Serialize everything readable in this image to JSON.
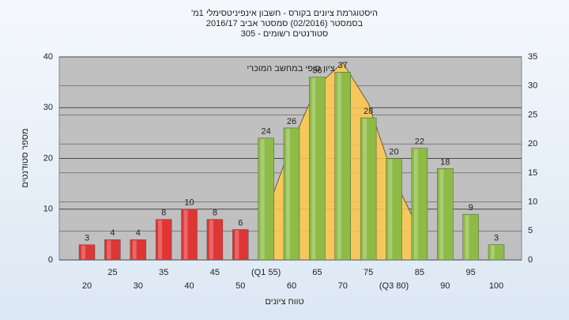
{
  "chart_data": {
    "type": "bar",
    "title": "היסטוגרמת ציונים בקורס - חשבון אינפיניטסימלי 1מ'",
    "subtitle": "בסמסטר  (02/2016)  סמסטר אביב 2016/17",
    "subtitle2": "סטודנטים רשומים - 305",
    "x_label": "טווח ציונים",
    "y_label": "מספר סטודנטים",
    "annotation": "ציון סופי במחשב המוכרי",
    "categories": [
      "20",
      "25",
      "30",
      "35",
      "40",
      "45",
      "50",
      "(Q1 55)",
      "60",
      "65",
      "70",
      "75",
      "(Q3 80)",
      "85",
      "90",
      "95",
      "100"
    ],
    "values": [
      3,
      4,
      4,
      8,
      10,
      8,
      6,
      24,
      26,
      36,
      37,
      28,
      20,
      22,
      18,
      9,
      3
    ],
    "colors": [
      "#e03535",
      "#e03535",
      "#e03535",
      "#e03535",
      "#e03535",
      "#e03535",
      "#e03535",
      "#8dbb45",
      "#8dbb45",
      "#8dbb45",
      "#8dbb45",
      "#8dbb45",
      "#8dbb45",
      "#8dbb45",
      "#8dbb45",
      "#8dbb45",
      "#8dbb45"
    ],
    "curve": {
      "axis": "y2",
      "color": "#ffc94a",
      "values": [
        null,
        null,
        null,
        null,
        null,
        null,
        null,
        8,
        20,
        30,
        34,
        27,
        14,
        5,
        null,
        null,
        null
      ]
    },
    "ylim": [
      0,
      40
    ],
    "yticks": [
      0,
      10,
      20,
      30,
      40
    ],
    "y2lim": [
      0,
      35
    ],
    "y2ticks": [
      0,
      5,
      10,
      15,
      20,
      25,
      30,
      35
    ],
    "grid": true
  }
}
